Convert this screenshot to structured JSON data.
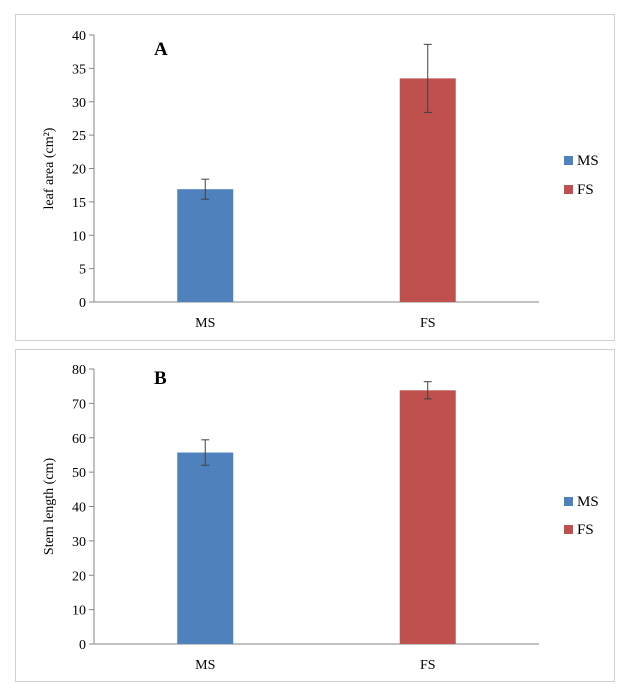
{
  "chart_data": [
    {
      "type": "bar",
      "panel_label": "A",
      "categories": [
        "MS",
        "FS"
      ],
      "values": [
        16.9,
        33.5
      ],
      "errors": [
        1.5,
        5.1
      ],
      "colors": [
        "#4f81bd",
        "#c0504d"
      ],
      "ylabel": "leaf area (cm²)",
      "xlabel": "",
      "ylim": [
        0,
        40
      ],
      "yticks": [
        "0",
        "5",
        "10",
        "15",
        "20",
        "25",
        "30",
        "35",
        "40"
      ],
      "ytick_values": [
        0,
        5,
        10,
        15,
        20,
        25,
        30,
        35,
        40
      ],
      "legend": [
        {
          "name": "MS",
          "color": "#4f81bd"
        },
        {
          "name": "FS",
          "color": "#c0504d"
        }
      ],
      "legend_position": "right"
    },
    {
      "type": "bar",
      "panel_label": "B",
      "categories": [
        "MS",
        "FS"
      ],
      "values": [
        55.7,
        73.8
      ],
      "errors": [
        3.7,
        2.5
      ],
      "colors": [
        "#4f81bd",
        "#c0504d"
      ],
      "ylabel": "Stem length (cm)",
      "xlabel": "",
      "ylim": [
        0,
        80
      ],
      "yticks": [
        "0",
        "10",
        "20",
        "30",
        "40",
        "50",
        "60",
        "70",
        "80"
      ],
      "ytick_values": [
        0,
        10,
        20,
        30,
        40,
        50,
        60,
        70,
        80
      ],
      "legend": [
        {
          "name": "MS",
          "color": "#4f81bd"
        },
        {
          "name": "FS",
          "color": "#c0504d"
        }
      ],
      "legend_position": "right"
    }
  ]
}
